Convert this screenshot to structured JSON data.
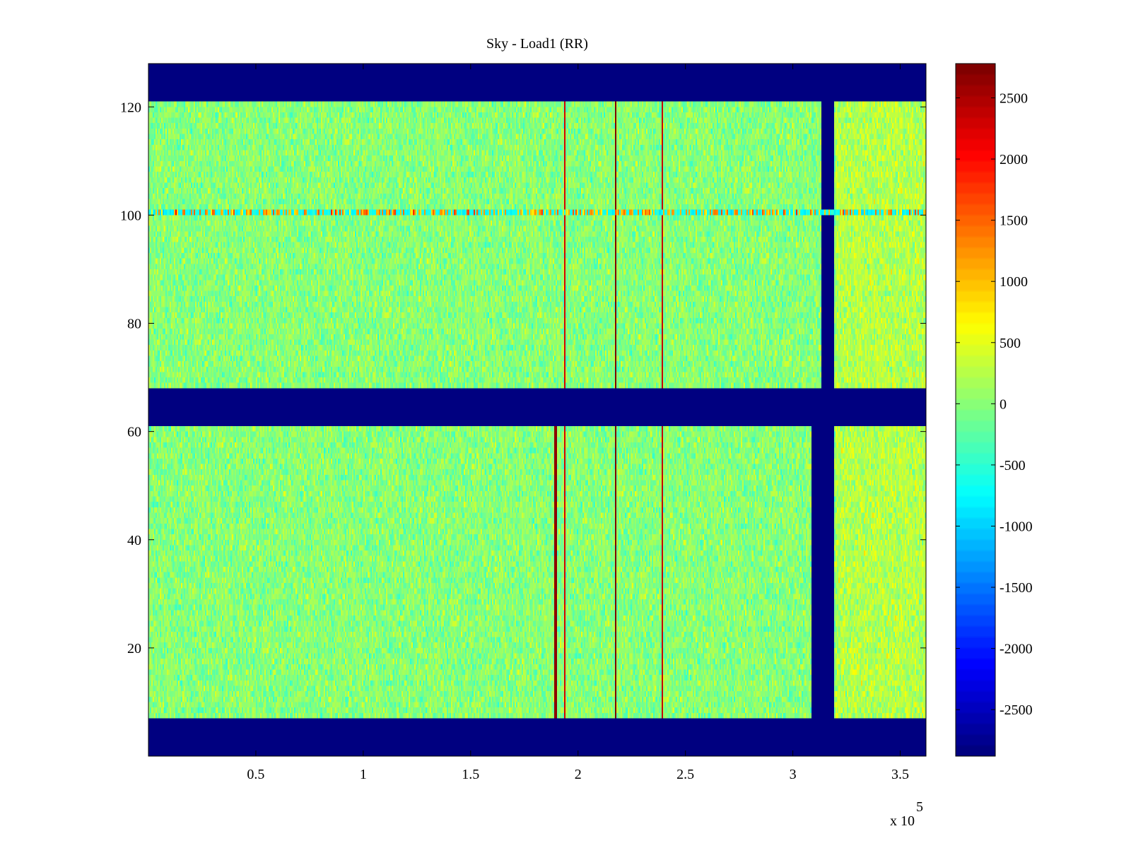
{
  "chart_data": {
    "type": "heatmap",
    "title": "Sky - Load1 (RR)",
    "xlabel": "",
    "ylabel": "",
    "x_multiplier_label": "x 10",
    "x_multiplier_exponent": "5",
    "xlim": [
      0,
      3.62
    ],
    "ylim": [
      0,
      128
    ],
    "x_ticks": [
      {
        "value": 0.5,
        "label": "0.5"
      },
      {
        "value": 1,
        "label": "1"
      },
      {
        "value": 1.5,
        "label": "1.5"
      },
      {
        "value": 2,
        "label": "2"
      },
      {
        "value": 2.5,
        "label": "2.5"
      },
      {
        "value": 3,
        "label": "3"
      },
      {
        "value": 3.5,
        "label": "3.5"
      }
    ],
    "y_ticks": [
      {
        "value": 20,
        "label": "20"
      },
      {
        "value": 40,
        "label": "40"
      },
      {
        "value": 60,
        "label": "60"
      },
      {
        "value": 80,
        "label": "80"
      },
      {
        "value": 100,
        "label": "100"
      },
      {
        "value": 120,
        "label": "120"
      }
    ],
    "colorbar": {
      "colormap": "jet",
      "clim": [
        -2880,
        2780
      ],
      "ticks": [
        {
          "value": 2500,
          "label": "2500"
        },
        {
          "value": 2000,
          "label": "2000"
        },
        {
          "value": 1500,
          "label": "1500"
        },
        {
          "value": 1000,
          "label": "1000"
        },
        {
          "value": 500,
          "label": "500"
        },
        {
          "value": 0,
          "label": "0"
        },
        {
          "value": -500,
          "label": "-500"
        },
        {
          "value": -1000,
          "label": "-1000"
        },
        {
          "value": -1500,
          "label": "-1500"
        },
        {
          "value": -2000,
          "label": "-2000"
        },
        {
          "value": -2500,
          "label": "-2500"
        }
      ]
    },
    "background_value": 0,
    "masked_value": -2880,
    "masked_row_bands": [
      [
        0,
        7
      ],
      [
        61,
        68
      ],
      [
        121,
        128
      ]
    ],
    "masked_column_bands": [
      {
        "rows": [
          68,
          121
        ],
        "x": [
          3.135,
          3.195
        ]
      },
      {
        "rows": [
          7,
          61
        ],
        "x": [
          3.09,
          3.195
        ]
      }
    ],
    "vertical_lines": [
      {
        "x": 1.895,
        "rows": [
          7,
          61
        ],
        "value": 2700
      },
      {
        "x": 1.94,
        "rows": [
          7,
          121
        ],
        "value": 2300
      },
      {
        "x": 2.175,
        "rows": [
          7,
          121
        ],
        "value": 2800
      },
      {
        "x": 2.395,
        "rows": [
          7,
          121
        ],
        "value": 2400
      }
    ],
    "horizontal_line": {
      "row": 100,
      "value": 1200
    },
    "grid": false,
    "legend": "none"
  }
}
